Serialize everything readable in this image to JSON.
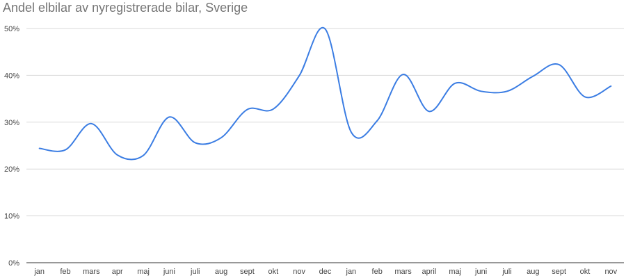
{
  "chart_data": {
    "type": "line",
    "title": "Andel elbilar av nyregistrerade bilar, Sverige",
    "xlabel": "",
    "ylabel": "",
    "categories": [
      "jan",
      "feb",
      "mars",
      "apr",
      "maj",
      "juni",
      "juli",
      "aug",
      "sept",
      "okt",
      "nov",
      "dec",
      "jan",
      "feb",
      "mars",
      "april",
      "maj",
      "juni",
      "juli",
      "aug",
      "sept",
      "okt",
      "nov"
    ],
    "series": [
      {
        "values": [
          24.4,
          24.1,
          29.7,
          23.0,
          22.9,
          31.1,
          25.6,
          26.7,
          32.7,
          32.8,
          39.9,
          49.9,
          27.9,
          30.3,
          40.2,
          32.3,
          38.3,
          36.6,
          36.6,
          39.8,
          42.3,
          35.4,
          37.7
        ],
        "color": "#3b7de3"
      }
    ],
    "ylim": [
      0,
      50
    ],
    "yticks": [
      0,
      10,
      20,
      30,
      40,
      50
    ],
    "ytick_labels": [
      "0%",
      "10%",
      "20%",
      "30%",
      "40%",
      "50%"
    ],
    "grid": true,
    "legend": "none",
    "colors": {
      "line": "#3b7de3",
      "grid": "#d9d9d9",
      "axis": "#333333",
      "title": "#757575",
      "tick_text": "#444444"
    }
  }
}
